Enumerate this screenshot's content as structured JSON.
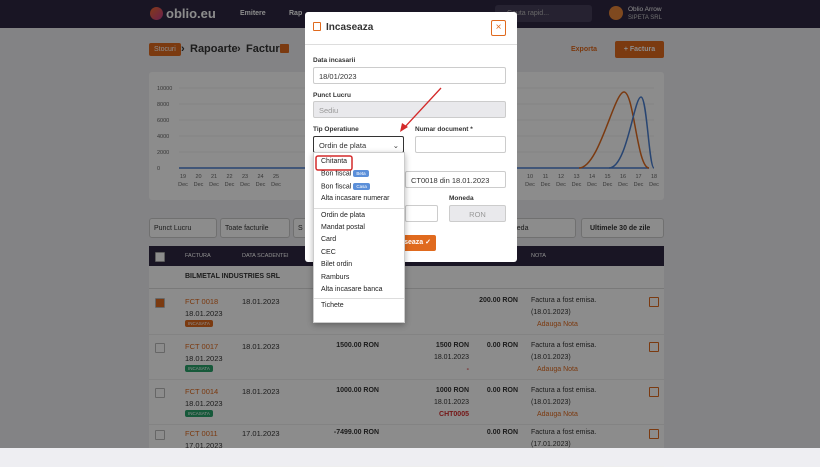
{
  "navbar": {
    "logo": "oblio.eu",
    "menu": [
      "Emitere",
      "Rap"
    ],
    "search": "Cauta rapid...",
    "user_name": "Oblio Arrow",
    "company": "SIPETA SRL"
  },
  "breadcrumb": [
    "Stocuri",
    "Rapoarte",
    "Facturi"
  ],
  "actions": {
    "export": "Exporta",
    "new": "+ Factura"
  },
  "chart": {
    "yticks": [
      "10000",
      "8000",
      "6000",
      "4000",
      "2000",
      "0"
    ],
    "month": "Dec",
    "days_left": [
      "19",
      "20",
      "21",
      "22",
      "23",
      "24",
      "25"
    ],
    "days_right": [
      "10",
      "11",
      "12",
      "13",
      "14",
      "15",
      "16",
      "17",
      "18"
    ]
  },
  "filters": [
    "Punct Lucru",
    "Toate facturile",
    "S",
    "oneda",
    "Ultimele 30 de zile"
  ],
  "table": {
    "headers": [
      "FACTURA",
      "DATA SCADENTEI",
      "NOTA"
    ],
    "group": "BILMETAL INDUSTRIES SRL",
    "rows": [
      {
        "invoice": "FCT 0018",
        "date": "18.01.2023",
        "due": "18.01.2023",
        "badge": "INCASATA",
        "badge_color": "#e06a1e",
        "checked": true,
        "rest": "200.00 RON",
        "note": "Factura a fost emisa.",
        "note_date": "(18.01.2023)",
        "add_note": "Adauga Nota"
      },
      {
        "invoice": "FCT 0017",
        "date": "18.01.2023",
        "due": "18.01.2023",
        "badge": "INCASATA",
        "badge_color": "#28a36a",
        "checked": false,
        "total": "1500.00 RON",
        "paid": "1500 RON",
        "paid_date": "18.01.2023",
        "paid_doc": "-",
        "rest": "0.00 RON",
        "note": "Factura a fost emisa.",
        "note_date": "(18.01.2023)",
        "add_note": "Adauga Nota"
      },
      {
        "invoice": "FCT 0014",
        "date": "18.01.2023",
        "due": "18.01.2023",
        "badge": "INCASATA",
        "badge_color": "#28a36a",
        "checked": false,
        "total": "1000.00 RON",
        "paid": "1000 RON",
        "paid_date": "18.01.2023",
        "paid_doc": "CHT0005",
        "rest": "0.00 RON",
        "note": "Factura a fost emisa.",
        "note_date": "(18.01.2023)",
        "add_note": "Adauga Nota"
      },
      {
        "invoice": "FCT 0011",
        "date": "17.01.2023",
        "due": "17.01.2023",
        "checked": false,
        "total": "-7499.00 RON",
        "rest": "0.00 RON",
        "note": "Factura a fost emisa.",
        "note_date": "(17.01.2023)"
      }
    ]
  },
  "modal": {
    "title": "Incaseaza",
    "close": "×",
    "date_label": "Data incasarii",
    "date_value": "18/01/2023",
    "point_label": "Punct Lucru",
    "point_value": "Sediu",
    "type_label": "Tip Operatiune",
    "type_value": "Ordin de plata",
    "doc_label": "Numar document *",
    "description": "CT0018 din 18.01.2023",
    "currency_label": "Moneda",
    "currency_value": "RON",
    "submit": "Incaseaza ✓"
  },
  "dropdown": {
    "cash": [
      {
        "label": "Chitanta"
      },
      {
        "label": "Bon fiscal",
        "badge": "Beta"
      },
      {
        "label": "Bon fiscal",
        "badge": "Casa"
      },
      {
        "label": "Alta incasare numerar"
      }
    ],
    "bank": [
      {
        "label": "Ordin de plata"
      },
      {
        "label": "Mandat postal"
      },
      {
        "label": "Card"
      },
      {
        "label": "CEC"
      },
      {
        "label": "Bilet ordin"
      },
      {
        "label": "Ramburs"
      },
      {
        "label": "Alta incasare banca"
      }
    ],
    "other": [
      {
        "label": "Tichete"
      }
    ]
  }
}
